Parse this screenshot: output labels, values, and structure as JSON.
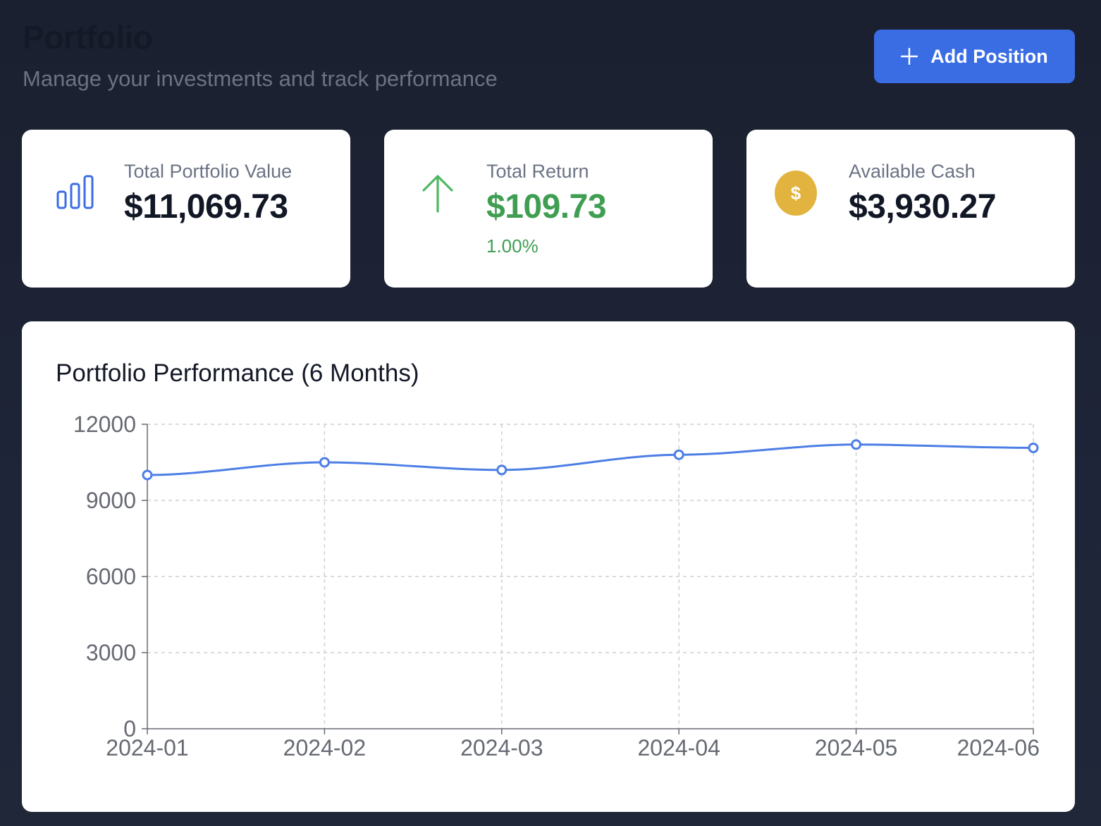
{
  "header": {
    "title": "Portfolio",
    "subtitle": "Manage your investments and track performance",
    "add_button_label": "Add Position"
  },
  "cards": [
    {
      "label": "Total Portfolio Value",
      "value": "$11,069.73",
      "icon": "bar-chart-icon"
    },
    {
      "label": "Total Return",
      "value": "$109.73",
      "sub": "1.00%",
      "icon": "arrow-up-icon"
    },
    {
      "label": "Available Cash",
      "value": "$3,930.27",
      "icon": "dollar-coin-icon",
      "icon_glyph": "$"
    }
  ],
  "colors": {
    "accent": "#3a6de4",
    "positive": "#3f9e52",
    "coin": "#e2b43f",
    "line": "#4d7ee6"
  },
  "chart_data": {
    "type": "line",
    "title": "Portfolio Performance (6 Months)",
    "categories": [
      "2024-01",
      "2024-02",
      "2024-03",
      "2024-04",
      "2024-05",
      "2024-06"
    ],
    "values": [
      10000,
      10500,
      10200,
      10800,
      11200,
      11070
    ],
    "ylim": [
      0,
      12000
    ],
    "yticks": [
      0,
      3000,
      6000,
      9000,
      12000
    ],
    "grid": true,
    "xlabel": "",
    "ylabel": ""
  }
}
